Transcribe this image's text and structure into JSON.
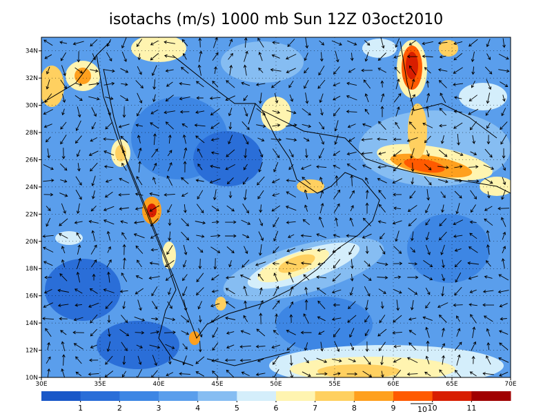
{
  "title": "isotachs (m/s) 1000 mb Sun 12Z 03oct2010",
  "map": {
    "xlim": [
      30,
      70
    ],
    "ylim": [
      10,
      35
    ],
    "xticks": [
      {
        "value": 30,
        "label": "30E"
      },
      {
        "value": 35,
        "label": "35E"
      },
      {
        "value": 40,
        "label": "40E"
      },
      {
        "value": 45,
        "label": "45E"
      },
      {
        "value": 50,
        "label": "50E"
      },
      {
        "value": 55,
        "label": "55E"
      },
      {
        "value": 60,
        "label": "60E"
      },
      {
        "value": 65,
        "label": "65E"
      },
      {
        "value": 70,
        "label": "70E"
      }
    ],
    "yticks": [
      {
        "value": 10,
        "label": "10N"
      },
      {
        "value": 12,
        "label": "12N"
      },
      {
        "value": 14,
        "label": "14N"
      },
      {
        "value": 16,
        "label": "16N"
      },
      {
        "value": 18,
        "label": "18N"
      },
      {
        "value": 20,
        "label": "20N"
      },
      {
        "value": 22,
        "label": "22N"
      },
      {
        "value": 24,
        "label": "24N"
      },
      {
        "value": 26,
        "label": "26N"
      },
      {
        "value": 28,
        "label": "28N"
      },
      {
        "value": 30,
        "label": "30N"
      },
      {
        "value": 32,
        "label": "32N"
      },
      {
        "value": 34,
        "label": "34N"
      }
    ]
  },
  "colorbar": {
    "ticks": [
      1,
      2,
      3,
      4,
      5,
      6,
      7,
      8,
      9,
      10,
      11
    ],
    "colors": [
      "#1a58c8",
      "#2a6ed8",
      "#3d86e4",
      "#5a9eec",
      "#86bdf2",
      "#d4eefb",
      "#fff4b0",
      "#ffd060",
      "#ffa01e",
      "#ff5a00",
      "#d81e00",
      "#a00000"
    ]
  },
  "reference_vector": {
    "label": "10"
  }
}
